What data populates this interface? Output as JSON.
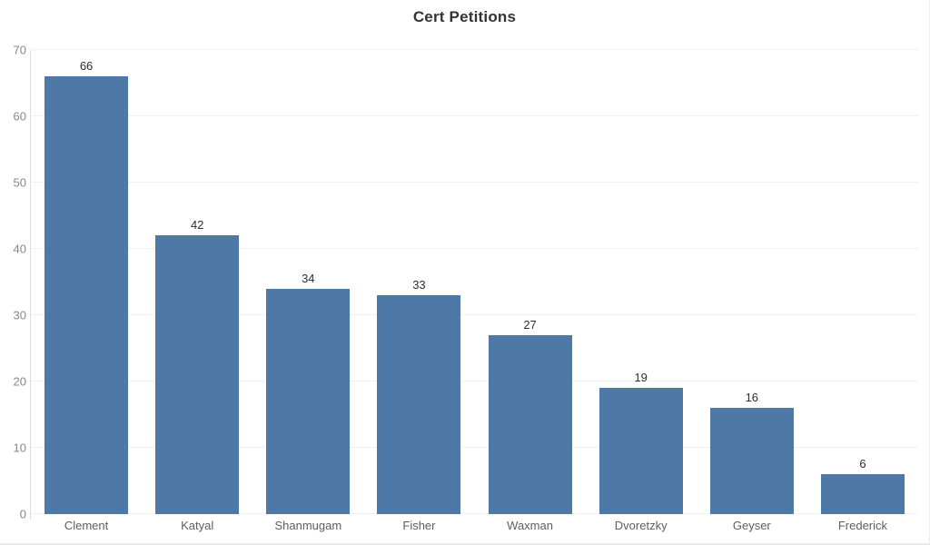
{
  "title": "Cert Petitions",
  "colors": {
    "bar": "#4e79a7",
    "gridline": "#f1f1f1",
    "axis_line": "#dcdcdc",
    "y_tick_label": "#878787",
    "x_axis_label": "#5e5e5e",
    "value_label": "#2e2e2e",
    "title": "#333333",
    "background": "#ffffff"
  },
  "chart_data": {
    "type": "bar",
    "title": "Cert Petitions",
    "categories": [
      "Clement",
      "Katyal",
      "Shanmugam",
      "Fisher",
      "Waxman",
      "Dvoretzky",
      "Geyser",
      "Frederick"
    ],
    "values": [
      66,
      42,
      34,
      33,
      27,
      19,
      16,
      6
    ],
    "xlabel": "",
    "ylabel": "",
    "ylim": [
      0,
      70
    ],
    "yticks": [
      0,
      10,
      20,
      30,
      40,
      50,
      60,
      70
    ],
    "grid": "horizontal",
    "legend": "none",
    "bar_labels_shown": true,
    "sort_order": "descending"
  }
}
